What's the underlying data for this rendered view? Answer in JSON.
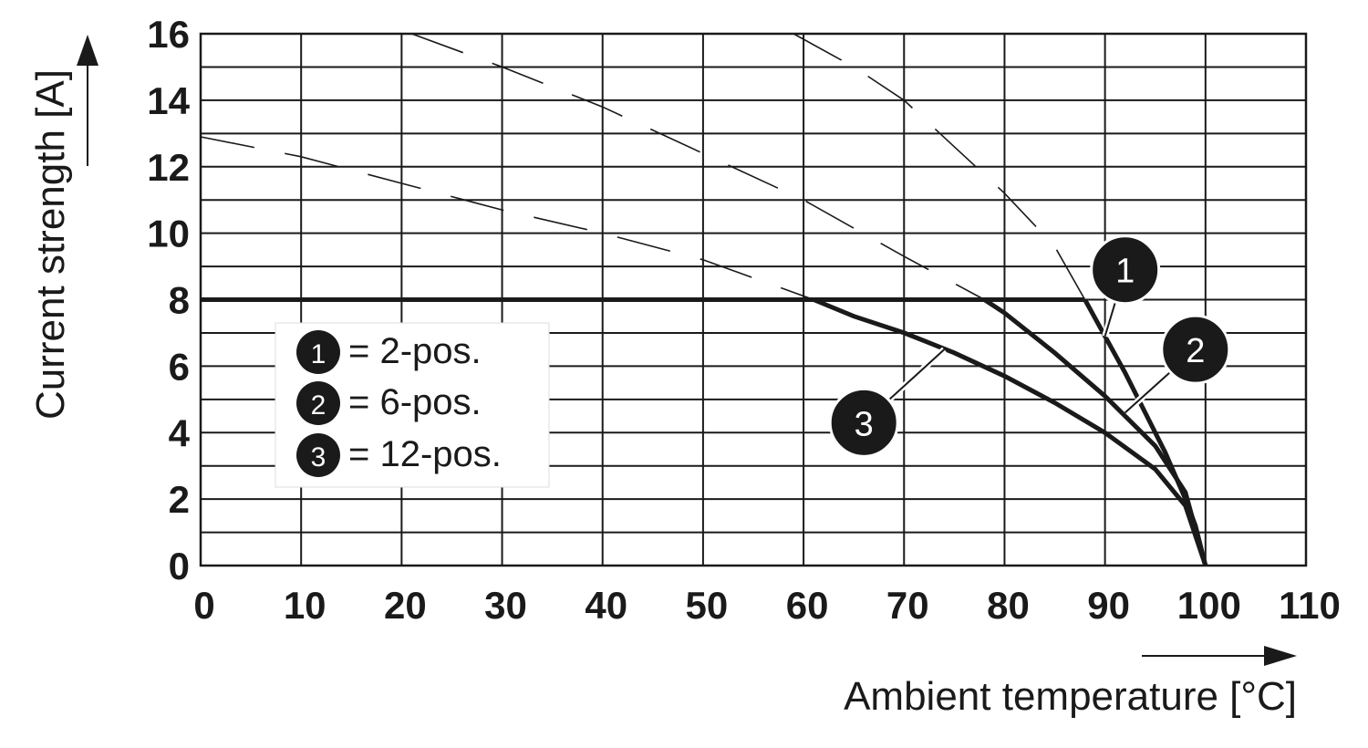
{
  "chart_data": {
    "type": "line",
    "xlabel": "Ambient temperature [°C]",
    "ylabel": "Current strength [A]",
    "xlim": [
      0,
      110
    ],
    "ylim": [
      0,
      16
    ],
    "x_ticks": [
      "0",
      "10",
      "20",
      "30",
      "40",
      "50",
      "60",
      "70",
      "80",
      "90",
      "100",
      "110"
    ],
    "y_ticks": [
      "0",
      "2",
      "4",
      "6",
      "8",
      "10",
      "12",
      "14",
      "16"
    ],
    "grid": true,
    "limit_current": 8,
    "legend_entries": [
      {
        "marker": "1",
        "label": "= 2-pos."
      },
      {
        "marker": "2",
        "label": "= 6-pos."
      },
      {
        "marker": "3",
        "label": "= 12-pos."
      }
    ],
    "series": [
      {
        "marker": "1",
        "solid": [
          [
            88,
            8
          ],
          [
            90,
            6.9
          ],
          [
            92,
            5.8
          ],
          [
            94,
            4.6
          ],
          [
            96,
            3.4
          ],
          [
            98,
            2.0
          ],
          [
            99,
            1.2
          ],
          [
            100,
            0
          ]
        ],
        "dashed": [
          [
            59,
            16
          ],
          [
            65,
            15
          ],
          [
            70,
            14
          ],
          [
            75,
            12.6
          ],
          [
            80,
            11.2
          ],
          [
            85,
            9.6
          ],
          [
            88,
            8
          ]
        ]
      },
      {
        "marker": "2",
        "solid": [
          [
            78,
            8
          ],
          [
            80,
            7.6
          ],
          [
            85,
            6.4
          ],
          [
            90,
            5.1
          ],
          [
            95,
            3.6
          ],
          [
            98,
            2.2
          ],
          [
            100,
            0
          ]
        ],
        "dashed": [
          [
            21,
            16
          ],
          [
            30,
            15
          ],
          [
            40,
            13.8
          ],
          [
            50,
            12.4
          ],
          [
            60,
            11
          ],
          [
            70,
            9.3
          ],
          [
            78,
            8
          ]
        ]
      },
      {
        "marker": "3",
        "solid": [
          [
            61,
            8
          ],
          [
            65,
            7.5
          ],
          [
            70,
            7
          ],
          [
            75,
            6.4
          ],
          [
            80,
            5.7
          ],
          [
            85,
            4.9
          ],
          [
            90,
            4.0
          ],
          [
            95,
            2.9
          ],
          [
            98,
            1.8
          ],
          [
            100,
            0
          ]
        ],
        "dashed": [
          [
            0,
            12.9
          ],
          [
            10,
            12.3
          ],
          [
            20,
            11.5
          ],
          [
            30,
            10.7
          ],
          [
            40,
            10
          ],
          [
            50,
            9.2
          ],
          [
            61,
            8
          ]
        ]
      }
    ],
    "callouts": [
      {
        "marker": "1",
        "at": [
          92,
          8.9
        ],
        "leader_to": [
          90,
          6.9
        ]
      },
      {
        "marker": "2",
        "at": [
          99,
          6.5
        ],
        "leader_to": [
          92,
          4.6
        ]
      },
      {
        "marker": "3",
        "at": [
          66,
          4.3
        ],
        "leader_to": [
          74,
          6.5
        ]
      }
    ]
  }
}
